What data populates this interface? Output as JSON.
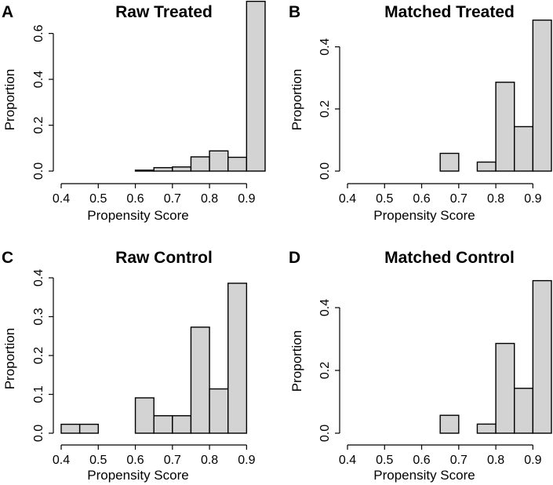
{
  "chart_data": [
    {
      "type": "bar",
      "panel_letter": "A",
      "title": "Raw Treated",
      "xlabel": "Propensity Score",
      "ylabel": "Proportion",
      "xlim": [
        0.4,
        0.95
      ],
      "ylim": [
        0,
        0.65
      ],
      "x_ticks": [
        0.4,
        0.5,
        0.6,
        0.7,
        0.8,
        0.9
      ],
      "x_tick_labels": [
        "0.4",
        "0.5",
        "0.6",
        "0.7",
        "0.8",
        "0.9"
      ],
      "y_ticks": [
        0,
        0.2,
        0.4,
        0.6
      ],
      "y_tick_labels": [
        "0.0",
        "0.2",
        "0.4",
        "0.6"
      ],
      "bins": [
        [
          0.4,
          0.45
        ],
        [
          0.45,
          0.5
        ],
        [
          0.5,
          0.55
        ],
        [
          0.55,
          0.6
        ],
        [
          0.6,
          0.65
        ],
        [
          0.65,
          0.7
        ],
        [
          0.7,
          0.75
        ],
        [
          0.75,
          0.8
        ],
        [
          0.8,
          0.85
        ],
        [
          0.85,
          0.9
        ],
        [
          0.9,
          0.95
        ]
      ],
      "values": [
        0,
        0,
        0,
        0,
        0.004,
        0.015,
        0.018,
        0.062,
        0.088,
        0.06,
        0.74
      ]
    },
    {
      "type": "bar",
      "panel_letter": "B",
      "title": "Matched Treated",
      "xlabel": "Propensity Score",
      "ylabel": "Proportion",
      "xlim": [
        0.4,
        0.95
      ],
      "ylim": [
        0,
        0.48
      ],
      "x_ticks": [
        0.4,
        0.5,
        0.6,
        0.7,
        0.8,
        0.9
      ],
      "x_tick_labels": [
        "0.4",
        "0.5",
        "0.6",
        "0.7",
        "0.8",
        "0.9"
      ],
      "y_ticks": [
        0,
        0.2,
        0.4
      ],
      "y_tick_labels": [
        "0.0",
        "0.2",
        "0.4"
      ],
      "bins": [
        [
          0.4,
          0.45
        ],
        [
          0.45,
          0.5
        ],
        [
          0.5,
          0.55
        ],
        [
          0.55,
          0.6
        ],
        [
          0.6,
          0.65
        ],
        [
          0.65,
          0.7
        ],
        [
          0.7,
          0.75
        ],
        [
          0.75,
          0.8
        ],
        [
          0.8,
          0.85
        ],
        [
          0.85,
          0.9
        ],
        [
          0.9,
          0.95
        ]
      ],
      "values": [
        0,
        0,
        0,
        0,
        0,
        0.057,
        0,
        0.029,
        0.286,
        0.143,
        0.486
      ]
    },
    {
      "type": "bar",
      "panel_letter": "C",
      "title": "Raw Control",
      "xlabel": "Propensity Score",
      "ylabel": "Proportion",
      "xlim": [
        0.4,
        0.95
      ],
      "ylim": [
        0,
        0.4
      ],
      "x_ticks": [
        0.4,
        0.5,
        0.6,
        0.7,
        0.8,
        0.9
      ],
      "x_tick_labels": [
        "0.4",
        "0.5",
        "0.6",
        "0.7",
        "0.8",
        "0.9"
      ],
      "y_ticks": [
        0,
        0.1,
        0.2,
        0.3,
        0.4
      ],
      "y_tick_labels": [
        "0.0",
        "0.1",
        "0.2",
        "0.3",
        "0.4"
      ],
      "bins": [
        [
          0.4,
          0.45
        ],
        [
          0.45,
          0.5
        ],
        [
          0.5,
          0.55
        ],
        [
          0.55,
          0.6
        ],
        [
          0.6,
          0.65
        ],
        [
          0.65,
          0.7
        ],
        [
          0.7,
          0.75
        ],
        [
          0.75,
          0.8
        ],
        [
          0.8,
          0.85
        ],
        [
          0.85,
          0.9
        ],
        [
          0.9,
          0.95
        ]
      ],
      "values": [
        0.023,
        0.023,
        0,
        0,
        0.091,
        0.045,
        0.045,
        0.273,
        0.114,
        0.386,
        0
      ]
    },
    {
      "type": "bar",
      "panel_letter": "D",
      "title": "Matched Control",
      "xlabel": "Propensity Score",
      "ylabel": "Proportion",
      "xlim": [
        0.4,
        0.95
      ],
      "ylim": [
        0,
        0.48
      ],
      "x_ticks": [
        0.4,
        0.5,
        0.6,
        0.7,
        0.8,
        0.9
      ],
      "x_tick_labels": [
        "0.4",
        "0.5",
        "0.6",
        "0.7",
        "0.8",
        "0.9"
      ],
      "y_ticks": [
        0,
        0.2,
        0.4
      ],
      "y_tick_labels": [
        "0.0",
        "0.2",
        "0.4"
      ],
      "bins": [
        [
          0.4,
          0.45
        ],
        [
          0.45,
          0.5
        ],
        [
          0.5,
          0.55
        ],
        [
          0.55,
          0.6
        ],
        [
          0.6,
          0.65
        ],
        [
          0.65,
          0.7
        ],
        [
          0.7,
          0.75
        ],
        [
          0.75,
          0.8
        ],
        [
          0.8,
          0.85
        ],
        [
          0.85,
          0.9
        ],
        [
          0.9,
          0.95
        ]
      ],
      "values": [
        0,
        0,
        0,
        0,
        0,
        0.057,
        0,
        0.029,
        0.286,
        0.143,
        0.486
      ]
    }
  ],
  "colors": {
    "bar_fill": "#d3d3d3",
    "bar_stroke": "#000000"
  }
}
